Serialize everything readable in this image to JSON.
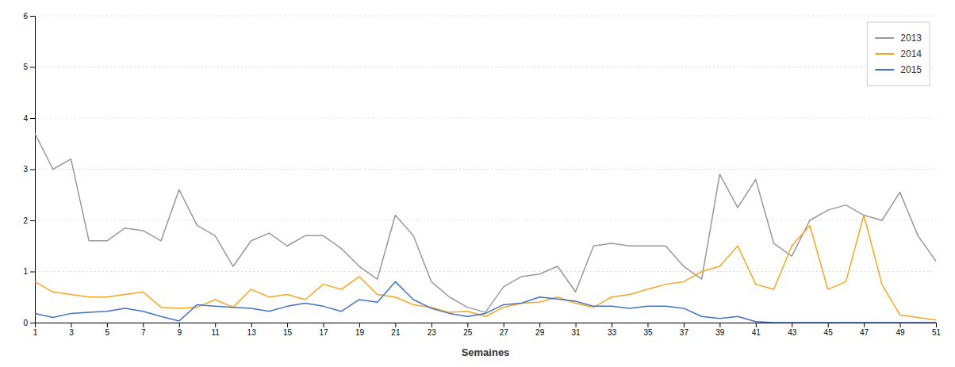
{
  "chart_data": {
    "type": "line",
    "xlabel": "Semaines",
    "x": [
      1,
      2,
      3,
      4,
      5,
      6,
      7,
      8,
      9,
      10,
      11,
      12,
      13,
      14,
      15,
      16,
      17,
      18,
      19,
      20,
      21,
      22,
      23,
      24,
      25,
      26,
      27,
      28,
      29,
      30,
      31,
      32,
      33,
      34,
      35,
      36,
      37,
      38,
      39,
      40,
      41,
      42,
      43,
      44,
      45,
      46,
      47,
      48,
      49,
      50,
      51
    ],
    "series": [
      {
        "name": "2013",
        "color": "#999999",
        "values": [
          3.7,
          3.0,
          3.2,
          1.6,
          1.6,
          1.85,
          1.8,
          1.6,
          2.6,
          1.9,
          1.7,
          1.1,
          1.6,
          1.75,
          1.5,
          1.7,
          1.7,
          1.45,
          1.1,
          0.85,
          2.1,
          1.7,
          0.8,
          0.5,
          0.3,
          0.2,
          0.7,
          0.9,
          0.95,
          1.1,
          0.6,
          1.5,
          1.55,
          1.5,
          1.5,
          1.5,
          1.1,
          0.85,
          2.9,
          2.25,
          2.8,
          1.55,
          1.3,
          2.0,
          2.2,
          2.3,
          2.1,
          2.0,
          2.55,
          1.7,
          1.2
        ]
      },
      {
        "name": "2014",
        "color": "#f5a623",
        "values": [
          0.8,
          0.6,
          0.55,
          0.5,
          0.5,
          0.55,
          0.6,
          0.3,
          0.28,
          0.3,
          0.45,
          0.3,
          0.65,
          0.5,
          0.55,
          0.45,
          0.75,
          0.65,
          0.9,
          0.55,
          0.5,
          0.35,
          0.3,
          0.2,
          0.22,
          0.12,
          0.3,
          0.38,
          0.4,
          0.5,
          0.38,
          0.3,
          0.5,
          0.55,
          0.65,
          0.75,
          0.8,
          1.0,
          1.1,
          1.5,
          0.75,
          0.65,
          1.5,
          1.9,
          0.65,
          0.8,
          2.1,
          0.75,
          0.15,
          0.1,
          0.05
        ]
      },
      {
        "name": "2015",
        "color": "#4472c4",
        "values": [
          0.18,
          0.1,
          0.18,
          0.2,
          0.22,
          0.28,
          0.22,
          0.12,
          0.03,
          0.35,
          0.32,
          0.3,
          0.28,
          0.22,
          0.32,
          0.38,
          0.32,
          0.22,
          0.45,
          0.4,
          0.8,
          0.45,
          0.28,
          0.18,
          0.12,
          0.18,
          0.35,
          0.38,
          0.5,
          0.46,
          0.42,
          0.32,
          0.32,
          0.28,
          0.32,
          0.32,
          0.28,
          0.12,
          0.08,
          0.12,
          0.02,
          0.0,
          0.0,
          0.0,
          0.0,
          0.0,
          0.0,
          0.0,
          0.0,
          0.0,
          0.0
        ]
      }
    ],
    "xlim": [
      1,
      51
    ],
    "xticks": [
      1,
      3,
      5,
      7,
      9,
      11,
      13,
      15,
      17,
      19,
      21,
      23,
      25,
      27,
      29,
      31,
      33,
      35,
      37,
      39,
      41,
      43,
      45,
      47,
      49,
      51
    ],
    "ylim": [
      0,
      6
    ],
    "yticks": [
      0,
      1,
      2,
      3,
      4,
      5,
      6
    ],
    "grid": true,
    "legend": "upper right"
  }
}
